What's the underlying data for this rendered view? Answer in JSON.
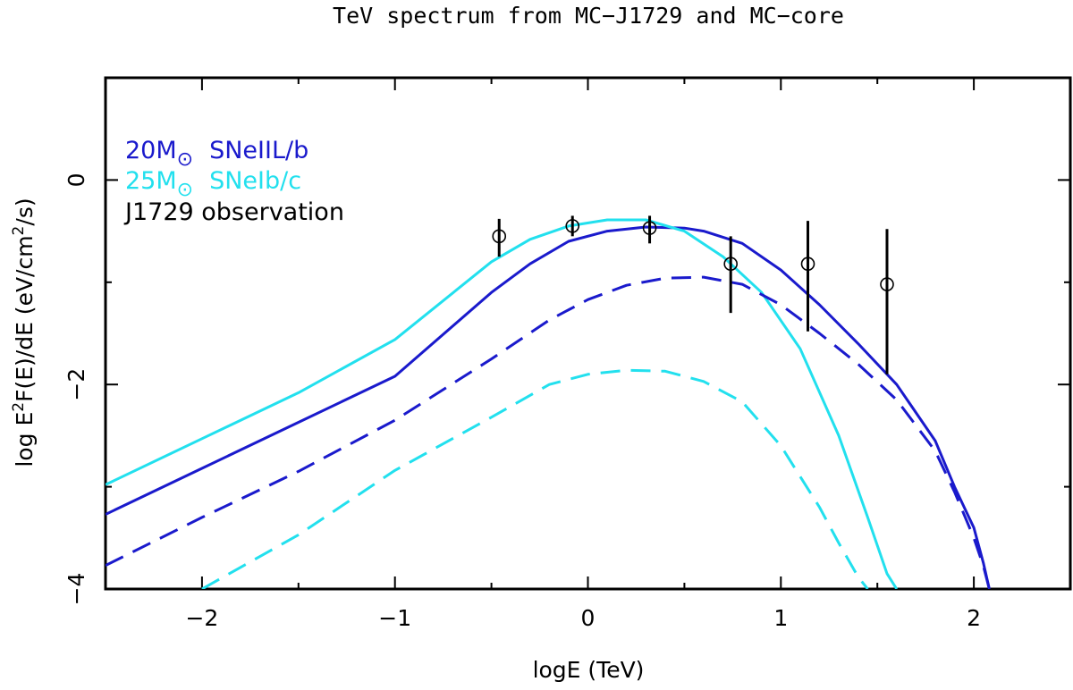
{
  "chart_data": {
    "type": "line",
    "title": "TeV spectrum from MC−J1729 and MC−core",
    "xlabel": "logE (TeV)",
    "ylabel": "log E2F(E)/dE (eV/cm2/s)",
    "ylabel_parts": {
      "pre": "log E",
      "sup1": "2",
      "mid": "F(E)/dE (eV/cm",
      "sup2": "2",
      "post": "/s)"
    },
    "xlim": [
      -2.5,
      2.5
    ],
    "ylim": [
      -4,
      1
    ],
    "x_ticks": [
      -2,
      -1,
      0,
      1,
      2
    ],
    "x_tick_labels": [
      "−2",
      "−1",
      "0",
      "1",
      "2"
    ],
    "y_ticks": [
      -4,
      -2,
      0
    ],
    "y_tick_labels": [
      "−4",
      "−2",
      "0"
    ],
    "legend": [
      {
        "mass": "20M",
        "type": "SNeIIL/b",
        "color": "#1a1acc",
        "sun_symbol": "⊙"
      },
      {
        "mass": "25M",
        "type": "SNeIb/c",
        "color": "#22e0ee",
        "sun_symbol": "⊙"
      },
      {
        "label": "J1729 observation",
        "color": "#000000"
      }
    ],
    "series": [
      {
        "name": "20M SNeIIL/b total",
        "color": "#1a1acc",
        "dash": false,
        "x": [
          -2.5,
          -2.0,
          -1.5,
          -1.0,
          -0.5,
          -0.3,
          -0.1,
          0.1,
          0.3,
          0.5,
          0.6,
          0.8,
          1.0,
          1.2,
          1.4,
          1.6,
          1.8,
          1.9,
          2.0,
          2.05,
          2.08
        ],
        "y": [
          -3.27,
          -2.82,
          -2.37,
          -1.92,
          -1.1,
          -0.82,
          -0.6,
          -0.5,
          -0.46,
          -0.47,
          -0.5,
          -0.62,
          -0.88,
          -1.22,
          -1.6,
          -2.0,
          -2.55,
          -3.0,
          -3.4,
          -3.75,
          -4.0
        ]
      },
      {
        "name": "25M SNeIb/c total",
        "color": "#22e0ee",
        "dash": false,
        "x": [
          -2.5,
          -2.0,
          -1.5,
          -1.0,
          -0.5,
          -0.3,
          -0.1,
          0.1,
          0.3,
          0.5,
          0.7,
          0.9,
          1.1,
          1.3,
          1.45,
          1.55,
          1.6
        ],
        "y": [
          -2.98,
          -2.53,
          -2.08,
          -1.56,
          -0.8,
          -0.58,
          -0.45,
          -0.39,
          -0.39,
          -0.5,
          -0.75,
          -1.1,
          -1.65,
          -2.5,
          -3.3,
          -3.85,
          -4.0
        ]
      },
      {
        "name": "20M SNeIIL/b dashed",
        "color": "#1a1acc",
        "dash": true,
        "x": [
          -2.5,
          -2.0,
          -1.5,
          -1.0,
          -0.5,
          -0.2,
          0.0,
          0.2,
          0.4,
          0.6,
          0.8,
          1.0,
          1.2,
          1.4,
          1.6,
          1.8,
          1.9,
          2.0,
          2.05,
          2.08
        ],
        "y": [
          -3.77,
          -3.3,
          -2.85,
          -2.35,
          -1.75,
          -1.37,
          -1.17,
          -1.03,
          -0.96,
          -0.95,
          -1.02,
          -1.22,
          -1.5,
          -1.8,
          -2.15,
          -2.65,
          -3.05,
          -3.5,
          -3.78,
          -4.0
        ]
      },
      {
        "name": "25M SNeIb/c dashed",
        "color": "#22e0ee",
        "dash": true,
        "x": [
          -2.0,
          -1.5,
          -1.0,
          -0.5,
          -0.2,
          0.0,
          0.2,
          0.4,
          0.6,
          0.8,
          1.0,
          1.1,
          1.2,
          1.3,
          1.4,
          1.45
        ],
        "y": [
          -4.0,
          -3.47,
          -2.84,
          -2.32,
          -2.0,
          -1.9,
          -1.86,
          -1.87,
          -1.97,
          -2.17,
          -2.6,
          -2.9,
          -3.2,
          -3.55,
          -3.88,
          -4.0
        ]
      }
    ],
    "observations": [
      {
        "x": -0.46,
        "y": -0.55,
        "y_low": -0.75,
        "y_high": -0.38
      },
      {
        "x": -0.08,
        "y": -0.45,
        "y_low": -0.55,
        "y_high": -0.35
      },
      {
        "x": 0.32,
        "y": -0.47,
        "y_low": -0.62,
        "y_high": -0.35
      },
      {
        "x": 0.74,
        "y": -0.82,
        "y_low": -1.3,
        "y_high": -0.55
      },
      {
        "x": 1.14,
        "y": -0.82,
        "y_low": -1.48,
        "y_high": -0.4
      },
      {
        "x": 1.55,
        "y": -1.02,
        "y_low": -1.9,
        "y_high": -0.48
      }
    ]
  }
}
